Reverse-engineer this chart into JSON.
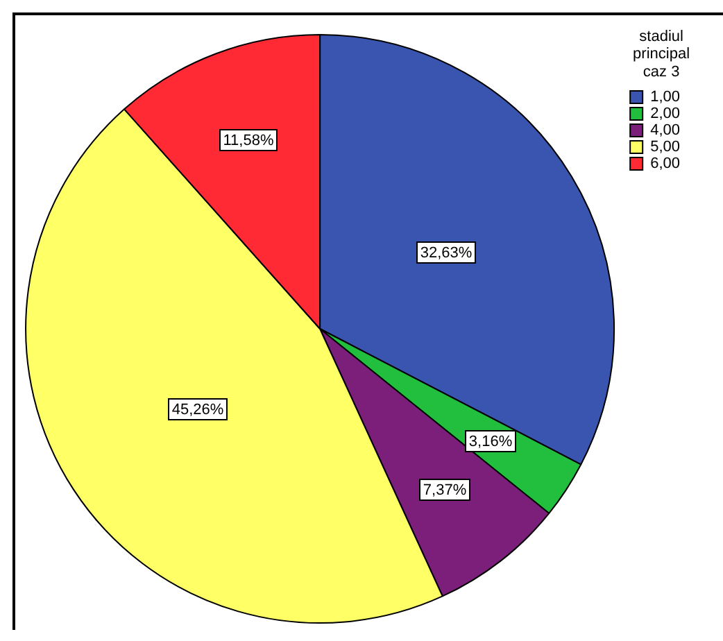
{
  "chart_data": {
    "type": "pie",
    "categories": [
      "1,00",
      "2,00",
      "4,00",
      "5,00",
      "6,00"
    ],
    "values": [
      32.63,
      3.16,
      7.37,
      45.26,
      11.58
    ],
    "colors": [
      "#3a55b0",
      "#22bf3f",
      "#7b1f7b",
      "#ffff66",
      "#ff2a33"
    ],
    "value_labels": [
      "32,63%",
      "3,16%",
      "7,37%",
      "45,26%",
      "11,58%"
    ],
    "legend": "top right",
    "legend_title": "stadiul principal caz 3"
  }
}
